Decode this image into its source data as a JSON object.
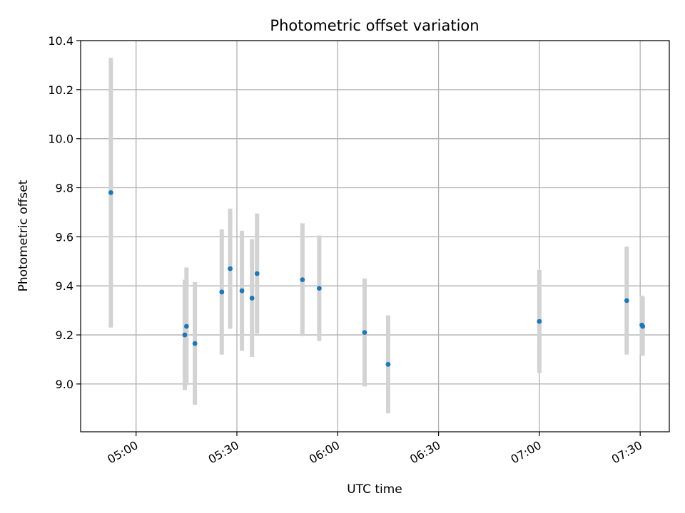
{
  "chart_data": {
    "type": "scatter",
    "title": "Photometric offset variation",
    "xlabel": "UTC time",
    "ylabel": "Photometric offset",
    "x_ticks": [
      "05:00",
      "05:30",
      "06:00",
      "06:30",
      "07:00",
      "07:30"
    ],
    "y_ticks": [
      "9.0",
      "9.2",
      "9.4",
      "9.6",
      "9.8",
      "10.0",
      "10.2",
      "10.4"
    ],
    "xlim": [
      "04:43:30",
      "07:38:40"
    ],
    "ylim": [
      8.805,
      10.4
    ],
    "grid": true,
    "colors": {
      "point": "#1f77b4",
      "errorbar": "#d3d3d3",
      "grid": "#b0b0b0"
    },
    "points": [
      {
        "x": "04:52:30",
        "y": 9.78,
        "yerr": 0.55
      },
      {
        "x": "05:14:30",
        "y": 9.2,
        "yerr": 0.225
      },
      {
        "x": "05:15:00",
        "y": 9.235,
        "yerr": 0.24
      },
      {
        "x": "05:17:30",
        "y": 9.165,
        "yerr": 0.25
      },
      {
        "x": "05:25:30",
        "y": 9.375,
        "yerr": 0.255
      },
      {
        "x": "05:28:00",
        "y": 9.47,
        "yerr": 0.245
      },
      {
        "x": "05:31:30",
        "y": 9.38,
        "yerr": 0.245
      },
      {
        "x": "05:34:30",
        "y": 9.35,
        "yerr": 0.24
      },
      {
        "x": "05:36:00",
        "y": 9.45,
        "yerr": 0.245
      },
      {
        "x": "05:49:30",
        "y": 9.425,
        "yerr": 0.23
      },
      {
        "x": "05:54:30",
        "y": 9.39,
        "yerr": 0.215
      },
      {
        "x": "06:08:00",
        "y": 9.21,
        "yerr": 0.22
      },
      {
        "x": "06:15:00",
        "y": 9.08,
        "yerr": 0.2
      },
      {
        "x": "07:00:00",
        "y": 9.255,
        "yerr": 0.21
      },
      {
        "x": "07:26:00",
        "y": 9.34,
        "yerr": 0.22
      },
      {
        "x": "07:30:30",
        "y": 9.24,
        "yerr": 0.12
      },
      {
        "x": "07:30:45",
        "y": 9.235,
        "yerr": 0.12
      }
    ]
  }
}
